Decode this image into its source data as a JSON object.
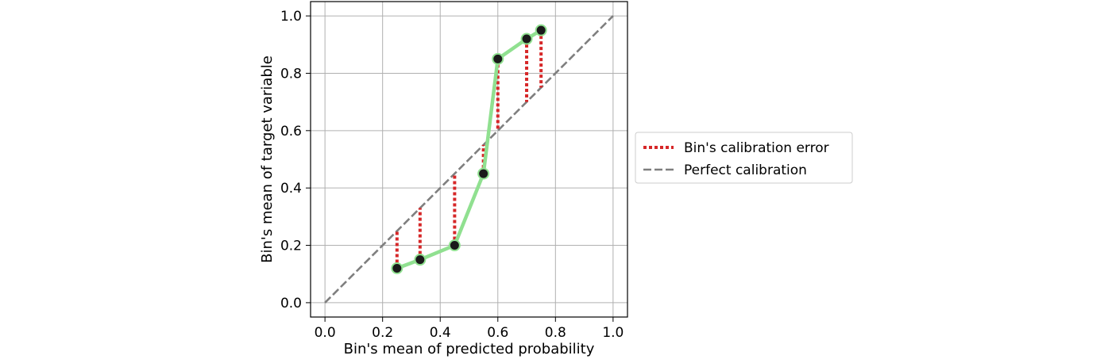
{
  "chart_data": {
    "type": "line",
    "title": "",
    "xlabel": "Bin's mean of predicted probability",
    "ylabel": "Bin's mean of target variable",
    "xlim": [
      -0.05,
      1.05
    ],
    "ylim": [
      -0.05,
      1.05
    ],
    "xticks": [
      0.0,
      0.2,
      0.4,
      0.6,
      0.8,
      1.0
    ],
    "yticks": [
      0.0,
      0.2,
      0.4,
      0.6,
      0.8,
      1.0
    ],
    "xtick_labels": [
      "0.0",
      "0.2",
      "0.4",
      "0.6",
      "0.8",
      "1.0"
    ],
    "ytick_labels": [
      "0.0",
      "0.2",
      "0.4",
      "0.6",
      "0.8",
      "1.0"
    ],
    "grid": true,
    "legend_position": "outside-right",
    "series": [
      {
        "key": "calibration_curve",
        "style": "solid line with circular markers",
        "color": "#90e090",
        "marker_color": "#1a1a1a",
        "x": [
          0.25,
          0.33,
          0.45,
          0.55,
          0.6,
          0.7,
          0.75
        ],
        "y": [
          0.12,
          0.15,
          0.2,
          0.45,
          0.85,
          0.92,
          0.95
        ]
      },
      {
        "key": "calibration_error",
        "name": "Bin's calibration error",
        "style": "dotted vertical segments",
        "color": "#d62728",
        "segments": [
          {
            "x": 0.25,
            "y_from": 0.12,
            "y_to": 0.25
          },
          {
            "x": 0.33,
            "y_from": 0.15,
            "y_to": 0.33
          },
          {
            "x": 0.45,
            "y_from": 0.2,
            "y_to": 0.45
          },
          {
            "x": 0.55,
            "y_from": 0.45,
            "y_to": 0.55
          },
          {
            "x": 0.6,
            "y_from": 0.85,
            "y_to": 0.6
          },
          {
            "x": 0.7,
            "y_from": 0.92,
            "y_to": 0.7
          },
          {
            "x": 0.75,
            "y_from": 0.95,
            "y_to": 0.75
          }
        ]
      },
      {
        "key": "perfect_calibration",
        "name": "Perfect calibration",
        "style": "dashed",
        "color": "#7f7f7f",
        "x": [
          0.0,
          1.0
        ],
        "y": [
          0.0,
          1.0
        ]
      }
    ],
    "legend": [
      {
        "label": "Bin's calibration error",
        "style": "dotted",
        "color": "#d62728"
      },
      {
        "label": "Perfect calibration",
        "style": "dashed",
        "color": "#7f7f7f"
      }
    ]
  }
}
